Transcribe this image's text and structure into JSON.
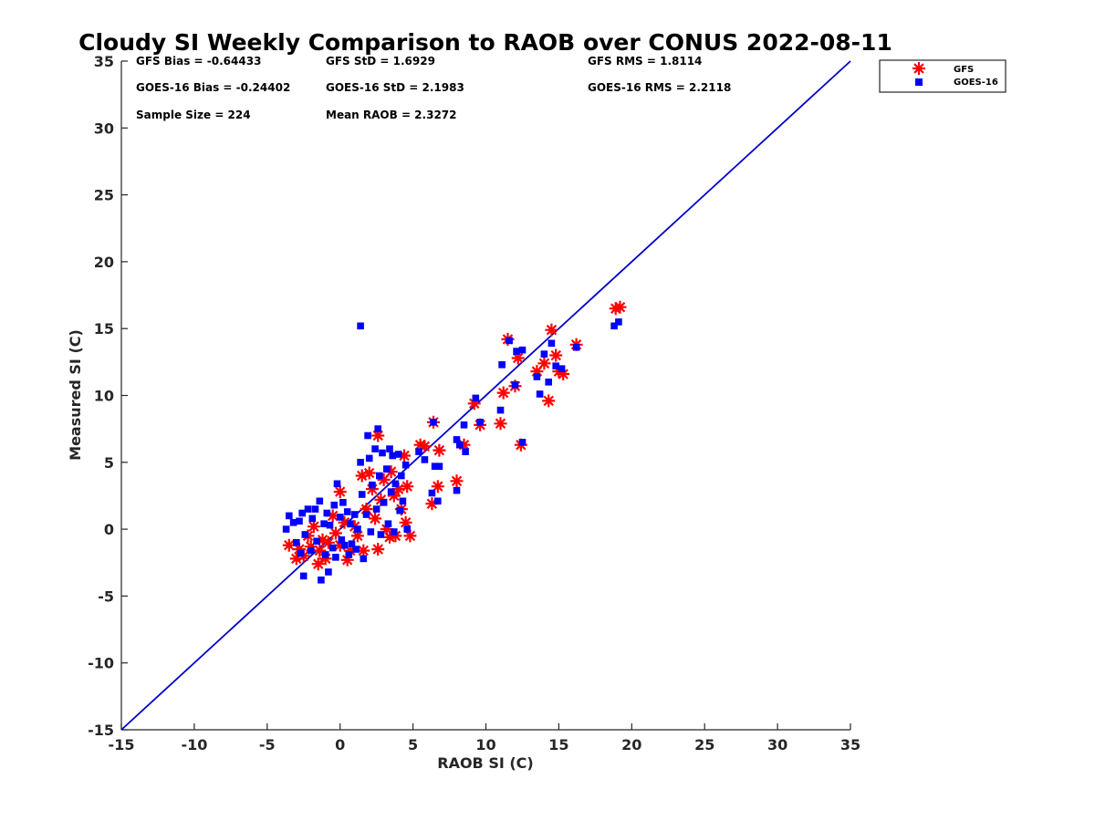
{
  "chart_data": {
    "type": "scatter",
    "title": "Cloudy SI Weekly Comparison to RAOB over CONUS 2022-08-11",
    "xlabel": "RAOB SI (C)",
    "ylabel": "Measured SI (C)",
    "xlim": [
      -15,
      35
    ],
    "ylim": [
      -15,
      35
    ],
    "xticks": [
      "-15",
      "-10",
      "-5",
      "0",
      "5",
      "10",
      "15",
      "20",
      "25",
      "30",
      "35"
    ],
    "yticks": [
      "35",
      "30",
      "25",
      "20",
      "15",
      "10",
      "5",
      "0",
      "-5",
      "-10",
      "-15"
    ],
    "grid": false,
    "legend_position": "top-right outside",
    "reference_line": {
      "x": [
        -15,
        35
      ],
      "y": [
        -15,
        35
      ],
      "color": "#0000cc"
    },
    "stats": {
      "gfs_bias": "GFS Bias = -0.64433",
      "gfs_std": "GFS StD = 1.6929",
      "gfs_rms": "GFS RMS = 1.8114",
      "goes_bias": "GOES-16 Bias = -0.24402",
      "goes_std": "GOES-16 StD = 2.1983",
      "goes_rms": "GOES-16 RMS = 2.2118",
      "sample_size": "Sample Size = 224",
      "mean_raob": "Mean RAOB = 2.3272"
    },
    "series": [
      {
        "name": "GFS",
        "marker": "asterisk",
        "color": "#ff0000",
        "points": [
          [
            -3.5,
            -1.2
          ],
          [
            -3.0,
            -2.2
          ],
          [
            -2.8,
            -1.5
          ],
          [
            -2.5,
            -2.0
          ],
          [
            -2.2,
            -0.5
          ],
          [
            -2.0,
            -1.3
          ],
          [
            -1.8,
            0.2
          ],
          [
            -1.5,
            -2.6
          ],
          [
            -1.4,
            -1.6
          ],
          [
            -1.2,
            -0.8
          ],
          [
            -1.0,
            -2.2
          ],
          [
            -0.8,
            -1.0
          ],
          [
            -0.5,
            1.0
          ],
          [
            -0.3,
            -0.3
          ],
          [
            0.0,
            2.8
          ],
          [
            0.0,
            -1.2
          ],
          [
            0.3,
            0.5
          ],
          [
            0.5,
            -2.3
          ],
          [
            0.7,
            -1.6
          ],
          [
            1.0,
            0.2
          ],
          [
            1.2,
            -0.5
          ],
          [
            1.5,
            4.0
          ],
          [
            1.6,
            -1.6
          ],
          [
            1.8,
            1.5
          ],
          [
            2.0,
            4.2
          ],
          [
            2.2,
            3.0
          ],
          [
            2.4,
            0.8
          ],
          [
            2.6,
            -1.5
          ],
          [
            2.6,
            7.0
          ],
          [
            2.8,
            2.2
          ],
          [
            3.0,
            3.7
          ],
          [
            3.2,
            0.0
          ],
          [
            3.4,
            -0.6
          ],
          [
            3.5,
            4.3
          ],
          [
            3.7,
            2.5
          ],
          [
            3.8,
            -0.5
          ],
          [
            4.0,
            3.0
          ],
          [
            4.2,
            1.5
          ],
          [
            4.4,
            5.5
          ],
          [
            4.5,
            0.5
          ],
          [
            4.6,
            3.2
          ],
          [
            4.8,
            -0.5
          ],
          [
            5.5,
            6.3
          ],
          [
            5.8,
            6.2
          ],
          [
            6.3,
            1.9
          ],
          [
            6.4,
            8.0
          ],
          [
            6.7,
            3.2
          ],
          [
            6.8,
            5.9
          ],
          [
            8.0,
            3.6
          ],
          [
            8.5,
            6.3
          ],
          [
            9.2,
            9.4
          ],
          [
            9.6,
            7.8
          ],
          [
            11.0,
            7.9
          ],
          [
            11.2,
            10.2
          ],
          [
            11.5,
            14.2
          ],
          [
            12.0,
            10.7
          ],
          [
            12.2,
            12.8
          ],
          [
            12.4,
            6.3
          ],
          [
            13.5,
            11.8
          ],
          [
            14.0,
            12.4
          ],
          [
            14.3,
            9.6
          ],
          [
            14.5,
            14.9
          ],
          [
            14.8,
            13.0
          ],
          [
            15.0,
            11.8
          ],
          [
            15.3,
            11.6
          ],
          [
            16.2,
            13.8
          ],
          [
            18.9,
            16.5
          ],
          [
            19.2,
            16.6
          ]
        ]
      },
      {
        "name": "GOES-16",
        "marker": "square",
        "color": "#0000ff",
        "points": [
          [
            -3.7,
            0.0
          ],
          [
            -3.5,
            1.0
          ],
          [
            -3.2,
            0.5
          ],
          [
            -3.0,
            -1.0
          ],
          [
            -2.8,
            0.6
          ],
          [
            -2.7,
            -1.8
          ],
          [
            -2.6,
            1.2
          ],
          [
            -2.5,
            -3.5
          ],
          [
            -2.4,
            -0.4
          ],
          [
            -2.2,
            1.5
          ],
          [
            -2.0,
            -1.6
          ],
          [
            -1.9,
            0.8
          ],
          [
            -1.7,
            1.5
          ],
          [
            -1.6,
            -0.9
          ],
          [
            -1.4,
            2.1
          ],
          [
            -1.3,
            -3.8
          ],
          [
            -1.1,
            0.4
          ],
          [
            -1.0,
            -1.9
          ],
          [
            -0.9,
            1.2
          ],
          [
            -0.8,
            -3.2
          ],
          [
            -0.7,
            0.3
          ],
          [
            -0.5,
            -1.4
          ],
          [
            -0.4,
            1.8
          ],
          [
            -0.3,
            -2.1
          ],
          [
            -0.2,
            3.4
          ],
          [
            0.0,
            0.9
          ],
          [
            0.1,
            -0.8
          ],
          [
            0.2,
            2.0
          ],
          [
            0.3,
            -1.2
          ],
          [
            0.5,
            1.3
          ],
          [
            0.6,
            -1.9
          ],
          [
            0.7,
            0.4
          ],
          [
            0.8,
            -1.1
          ],
          [
            1.0,
            1.1
          ],
          [
            1.1,
            -1.5
          ],
          [
            1.2,
            0.0
          ],
          [
            1.4,
            5.0
          ],
          [
            1.4,
            15.2
          ],
          [
            1.5,
            2.6
          ],
          [
            1.6,
            -2.2
          ],
          [
            1.8,
            1.1
          ],
          [
            1.9,
            7.0
          ],
          [
            2.0,
            5.3
          ],
          [
            2.1,
            -0.2
          ],
          [
            2.2,
            3.3
          ],
          [
            2.4,
            6.0
          ],
          [
            2.5,
            1.5
          ],
          [
            2.6,
            7.5
          ],
          [
            2.7,
            4.0
          ],
          [
            2.8,
            -0.4
          ],
          [
            2.9,
            5.7
          ],
          [
            3.0,
            2.0
          ],
          [
            3.2,
            4.5
          ],
          [
            3.3,
            0.4
          ],
          [
            3.4,
            6.0
          ],
          [
            3.5,
            2.8
          ],
          [
            3.6,
            5.5
          ],
          [
            3.7,
            -0.2
          ],
          [
            3.8,
            3.4
          ],
          [
            4.0,
            5.6
          ],
          [
            4.1,
            1.4
          ],
          [
            4.2,
            4.0
          ],
          [
            4.3,
            2.1
          ],
          [
            4.5,
            4.8
          ],
          [
            4.6,
            0.0
          ],
          [
            5.4,
            5.8
          ],
          [
            5.8,
            5.2
          ],
          [
            6.3,
            2.7
          ],
          [
            6.4,
            8.0
          ],
          [
            6.5,
            4.7
          ],
          [
            6.7,
            2.1
          ],
          [
            6.8,
            4.7
          ],
          [
            8.0,
            2.9
          ],
          [
            8.0,
            6.7
          ],
          [
            8.2,
            6.3
          ],
          [
            8.5,
            7.8
          ],
          [
            8.6,
            5.8
          ],
          [
            9.3,
            9.8
          ],
          [
            9.6,
            8.0
          ],
          [
            11.0,
            8.9
          ],
          [
            11.1,
            12.3
          ],
          [
            11.6,
            14.1
          ],
          [
            12.0,
            10.8
          ],
          [
            12.1,
            13.3
          ],
          [
            12.5,
            13.4
          ],
          [
            12.5,
            6.5
          ],
          [
            13.5,
            11.4
          ],
          [
            13.7,
            10.1
          ],
          [
            14.0,
            13.1
          ],
          [
            14.3,
            11.0
          ],
          [
            14.5,
            13.9
          ],
          [
            14.8,
            12.2
          ],
          [
            15.2,
            12.0
          ],
          [
            16.2,
            13.6
          ],
          [
            18.8,
            15.2
          ],
          [
            19.1,
            15.5
          ]
        ]
      }
    ]
  }
}
